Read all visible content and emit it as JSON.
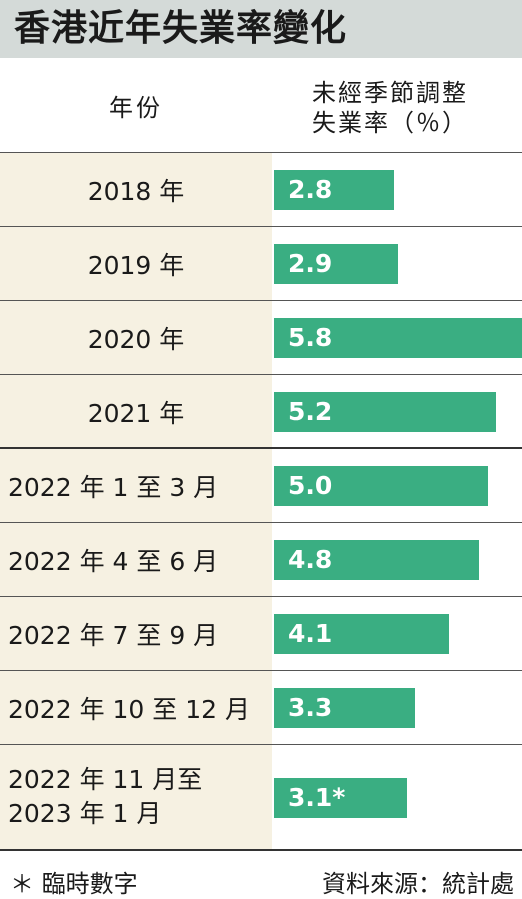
{
  "title": "香港近年失業率變化",
  "header": {
    "year_label": "年份",
    "value_label_line1": "未經季節調整",
    "value_label_line2": "失業率（％）"
  },
  "chart_data": {
    "type": "bar",
    "orientation": "horizontal",
    "categories": [
      "2018 年",
      "2019 年",
      "2020 年",
      "2021 年",
      "2022 年 1 至 3 月",
      "2022 年 4 至 6 月",
      "2022 年 7 至 9 月",
      "2022 年 10 至 12 月",
      "2022 年 11 月至 2023 年 1 月"
    ],
    "values": [
      2.8,
      2.9,
      5.8,
      5.2,
      5.0,
      4.8,
      4.1,
      3.3,
      3.1
    ],
    "value_labels": [
      "2.8",
      "2.9",
      "5.8",
      "5.2",
      "5.0",
      "4.8",
      "4.1",
      "3.3",
      "3.1*"
    ],
    "xlim": [
      0,
      5.8
    ],
    "grid": false,
    "legend": "none"
  },
  "rows": [
    {
      "label": "2018 年"
    },
    {
      "label": "2019 年"
    },
    {
      "label": "2020 年"
    },
    {
      "label": "2021 年"
    },
    {
      "label": "2022 年 1 至 3 月"
    },
    {
      "label": "2022 年 4 至 6 月"
    },
    {
      "label": "2022 年 7 至 9 月"
    },
    {
      "label": "2022 年 10 至 12 月"
    },
    {
      "label_line1": "2022 年 11 月至",
      "label_line2": "2023 年 1 月"
    }
  ],
  "footer": {
    "note": "＊ 臨時數字",
    "source": "資料來源：統計處"
  },
  "colors": {
    "bar": "#3aae82",
    "left_column": "#f6f1e2",
    "title_bar": "#d4dad8"
  }
}
